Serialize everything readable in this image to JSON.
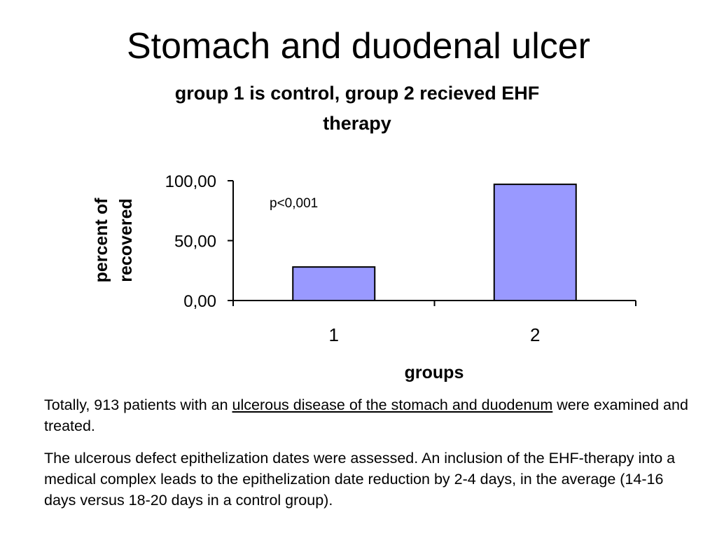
{
  "slide": {
    "title": "Stomach and duodenal ulcer"
  },
  "chart_data": {
    "type": "bar",
    "title_line1": "group 1 is control, group 2 recieved EHF",
    "title_line2": "therapy",
    "categories": [
      "1",
      "2"
    ],
    "values": [
      28,
      97
    ],
    "xlabel": "groups",
    "ylabel_line1": "percent of",
    "ylabel_line2": "recovered",
    "ylim": [
      0,
      100
    ],
    "yticks": [
      "0,00",
      "50,00",
      "100,00"
    ],
    "ytick_values": [
      0,
      50,
      100
    ],
    "annotation": "p<0,001",
    "bar_color": "#9999FF",
    "bar_stroke": "#000000",
    "grid": false,
    "legend": "none"
  },
  "text": {
    "p1_before": "Totally, 913 patients with an ",
    "p1_link": "ulcerous disease of the stomach and duodenum",
    "p1_after": " were examined and treated.",
    "p2": "The ulcerous defect epithelization dates were assessed. An inclusion of the EHF-therapy into a medical complex leads to the epithelization date reduction by 2-4 days, in the average (14-16 days versus 18-20 days in a control group)."
  }
}
